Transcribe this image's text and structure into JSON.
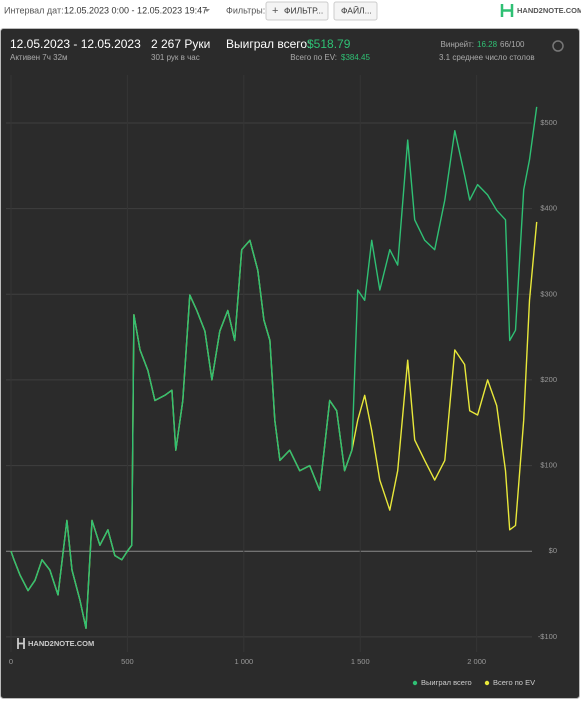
{
  "toolbar": {
    "date_label": "Интервал дат:",
    "date_range": "12.05.2023 0:00 - 12.05.2023 19:47",
    "filters_label": "Фильтры:",
    "filter_button": "ФИЛЬТР...",
    "file_button": "ФАЙЛ...",
    "logo": "HAND2NOTE.COM"
  },
  "summary": {
    "period": "12.05.2023 - 12.05.2023",
    "active": "Активен 7ч 32м",
    "hands": "2 267 Руки",
    "hands_rate": "301 рук в час",
    "won_label": "Выиграл всего:",
    "won_value": "$518.79",
    "ev_label": "Всего по EV:",
    "ev_value": "$384.45",
    "winrate_label": "Винрейт:",
    "winrate_value": "16.28",
    "winrate_hands": "66/100",
    "tables": "3.1 среднее число столов"
  },
  "chart_data": {
    "type": "line",
    "watermark": "HAND2NOTE.COM",
    "x": [
      0,
      13,
      39,
      73,
      103,
      133,
      167,
      202,
      240,
      262,
      296,
      322,
      348,
      382,
      416,
      446,
      476,
      502,
      519,
      528,
      554,
      588,
      618,
      661,
      691,
      708,
      738,
      768,
      798,
      833,
      863,
      897,
      931,
      961,
      991,
      1026,
      1060,
      1086,
      1112,
      1133,
      1155,
      1197,
      1240,
      1283,
      1326,
      1369,
      1399,
      1433,
      1464,
      1489,
      1519,
      1549,
      1584,
      1627,
      1661,
      1704,
      1734,
      1777,
      1820,
      1863,
      1906,
      1948,
      1970,
      2004,
      2047,
      2086,
      2124,
      2142,
      2167,
      2202,
      2227,
      2258
    ],
    "series": [
      {
        "name": "Выиграл всего",
        "color": "#2fc074",
        "values": [
          0,
          -10,
          -28,
          -46,
          -34,
          -10,
          -22,
          -51,
          36,
          -22,
          -57,
          -90,
          36,
          7,
          25,
          -5,
          -10,
          1,
          7,
          276,
          235,
          211,
          176,
          182,
          188,
          118,
          176,
          299,
          281,
          257,
          200,
          257,
          281,
          246,
          352,
          363,
          328,
          270,
          246,
          153,
          106,
          118,
          94,
          100,
          71,
          176,
          164,
          94,
          118,
          305,
          293,
          363,
          305,
          352,
          334,
          480,
          387,
          363,
          352,
          410,
          491,
          439,
          410,
          428,
          416,
          398,
          387,
          246,
          258,
          422,
          457,
          518.79
        ]
      },
      {
        "name": "Всего по EV",
        "color": "#e8e83a",
        "values": [
          0,
          -10,
          -28,
          -46,
          -34,
          -10,
          -22,
          -51,
          36,
          -22,
          -57,
          -90,
          36,
          7,
          25,
          -5,
          -10,
          1,
          7,
          276,
          235,
          211,
          176,
          182,
          188,
          118,
          176,
          299,
          281,
          257,
          200,
          257,
          281,
          246,
          352,
          363,
          328,
          270,
          246,
          153,
          106,
          118,
          94,
          100,
          71,
          176,
          164,
          94,
          118,
          153,
          182,
          141,
          83,
          48,
          94,
          223,
          130,
          106,
          83,
          106,
          235,
          218,
          164,
          159,
          200,
          170,
          94,
          25,
          30,
          153,
          293,
          384.45
        ]
      }
    ],
    "xlim": [
      0,
      2315
    ],
    "xticks": [
      0,
      500,
      {
        "value": 1000,
        "label": "1 000"
      },
      {
        "value": 1500,
        "label": "1 500"
      },
      {
        "value": 2000,
        "label": "2 000"
      }
    ],
    "ylim": [
      -127,
      556
    ],
    "yticks": [
      {
        "value": -100,
        "label": "-$100"
      },
      {
        "value": 0,
        "label": "$0"
      },
      {
        "value": 100,
        "label": "$100"
      },
      {
        "value": 200,
        "label": "$200"
      },
      {
        "value": 300,
        "label": "$300"
      },
      {
        "value": 400,
        "label": "$400"
      },
      {
        "value": 500,
        "label": "$500"
      }
    ],
    "grid": true
  }
}
